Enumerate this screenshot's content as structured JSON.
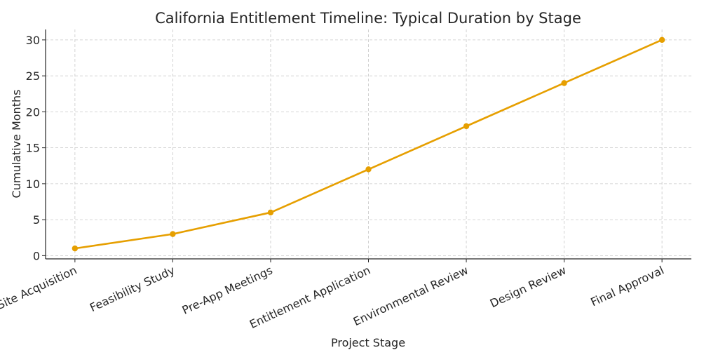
{
  "chart_data": {
    "type": "line",
    "title": "California Entitlement Timeline: Typical Duration by Stage",
    "xlabel": "Project Stage",
    "ylabel": "Cumulative Months",
    "categories": [
      "Site Acquisition",
      "Feasibility Study",
      "Pre-App Meetings",
      "Entitlement Application",
      "Environmental Review",
      "Design Review",
      "Final Approval"
    ],
    "series": [
      {
        "name": "Cumulative Months",
        "values": [
          1,
          3,
          6,
          12,
          18,
          24,
          30
        ],
        "color": "#E69F00"
      }
    ],
    "yticks": [
      0,
      5,
      10,
      15,
      20,
      25,
      30
    ],
    "ylim": [
      -0.45,
      31.45
    ],
    "grid": true,
    "legend": "none"
  }
}
